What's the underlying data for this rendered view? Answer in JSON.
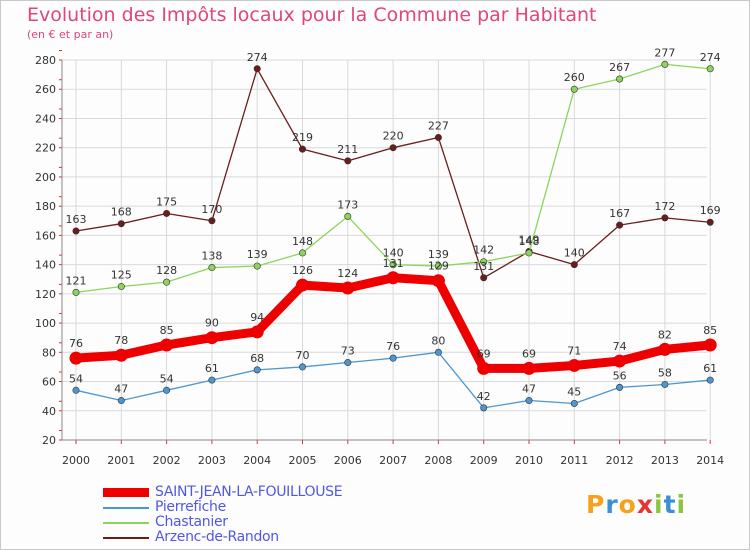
{
  "header": {
    "title": "Evolution des Impôts locaux pour la Commune par Habitant",
    "subtitle": "(en € et par an)"
  },
  "logo": {
    "text": "Proxiti"
  },
  "colors": {
    "title": "#e0457e",
    "legend_text": "#4f58e2",
    "grid": "#d9d9d9",
    "axis_ticks": "#e03030"
  },
  "chart_data": {
    "type": "line",
    "x": [
      "2000",
      "2001",
      "2002",
      "2003",
      "2004",
      "2005",
      "2006",
      "2007",
      "2008",
      "2009",
      "2010",
      "2011",
      "2012",
      "2013",
      "2014"
    ],
    "ylim": [
      20,
      280
    ],
    "yticks": [
      20,
      40,
      60,
      80,
      100,
      120,
      140,
      160,
      180,
      200,
      220,
      240,
      260,
      280
    ],
    "grid": true,
    "legend_position": "bottom-left",
    "series": [
      {
        "name": "Arzenc-de-Randon",
        "color": "#6b1c1c",
        "values": [
          163,
          168,
          175,
          170,
          274,
          219,
          211,
          220,
          227,
          131,
          149,
          140,
          167,
          172,
          169
        ]
      },
      {
        "name": "Chastanier",
        "color": "#8bd65a",
        "values": [
          121,
          125,
          128,
          138,
          139,
          148,
          173,
          140,
          139,
          142,
          148,
          260,
          267,
          277,
          274
        ]
      },
      {
        "name": "Pierrefiche",
        "color": "#4d96d0",
        "values": [
          54,
          47,
          54,
          61,
          68,
          70,
          73,
          76,
          80,
          42,
          47,
          45,
          56,
          58,
          61
        ]
      },
      {
        "name": "SAINT-JEAN-LA-FOUILLOUSE",
        "color": "#ee0000",
        "values": [
          76,
          78,
          85,
          90,
          94,
          126,
          124,
          131,
          129,
          69,
          69,
          71,
          74,
          82,
          85
        ]
      }
    ],
    "legend_order": [
      "SAINT-JEAN-LA-FOUILLOUSE",
      "Pierrefiche",
      "Chastanier",
      "Arzenc-de-Randon"
    ]
  }
}
